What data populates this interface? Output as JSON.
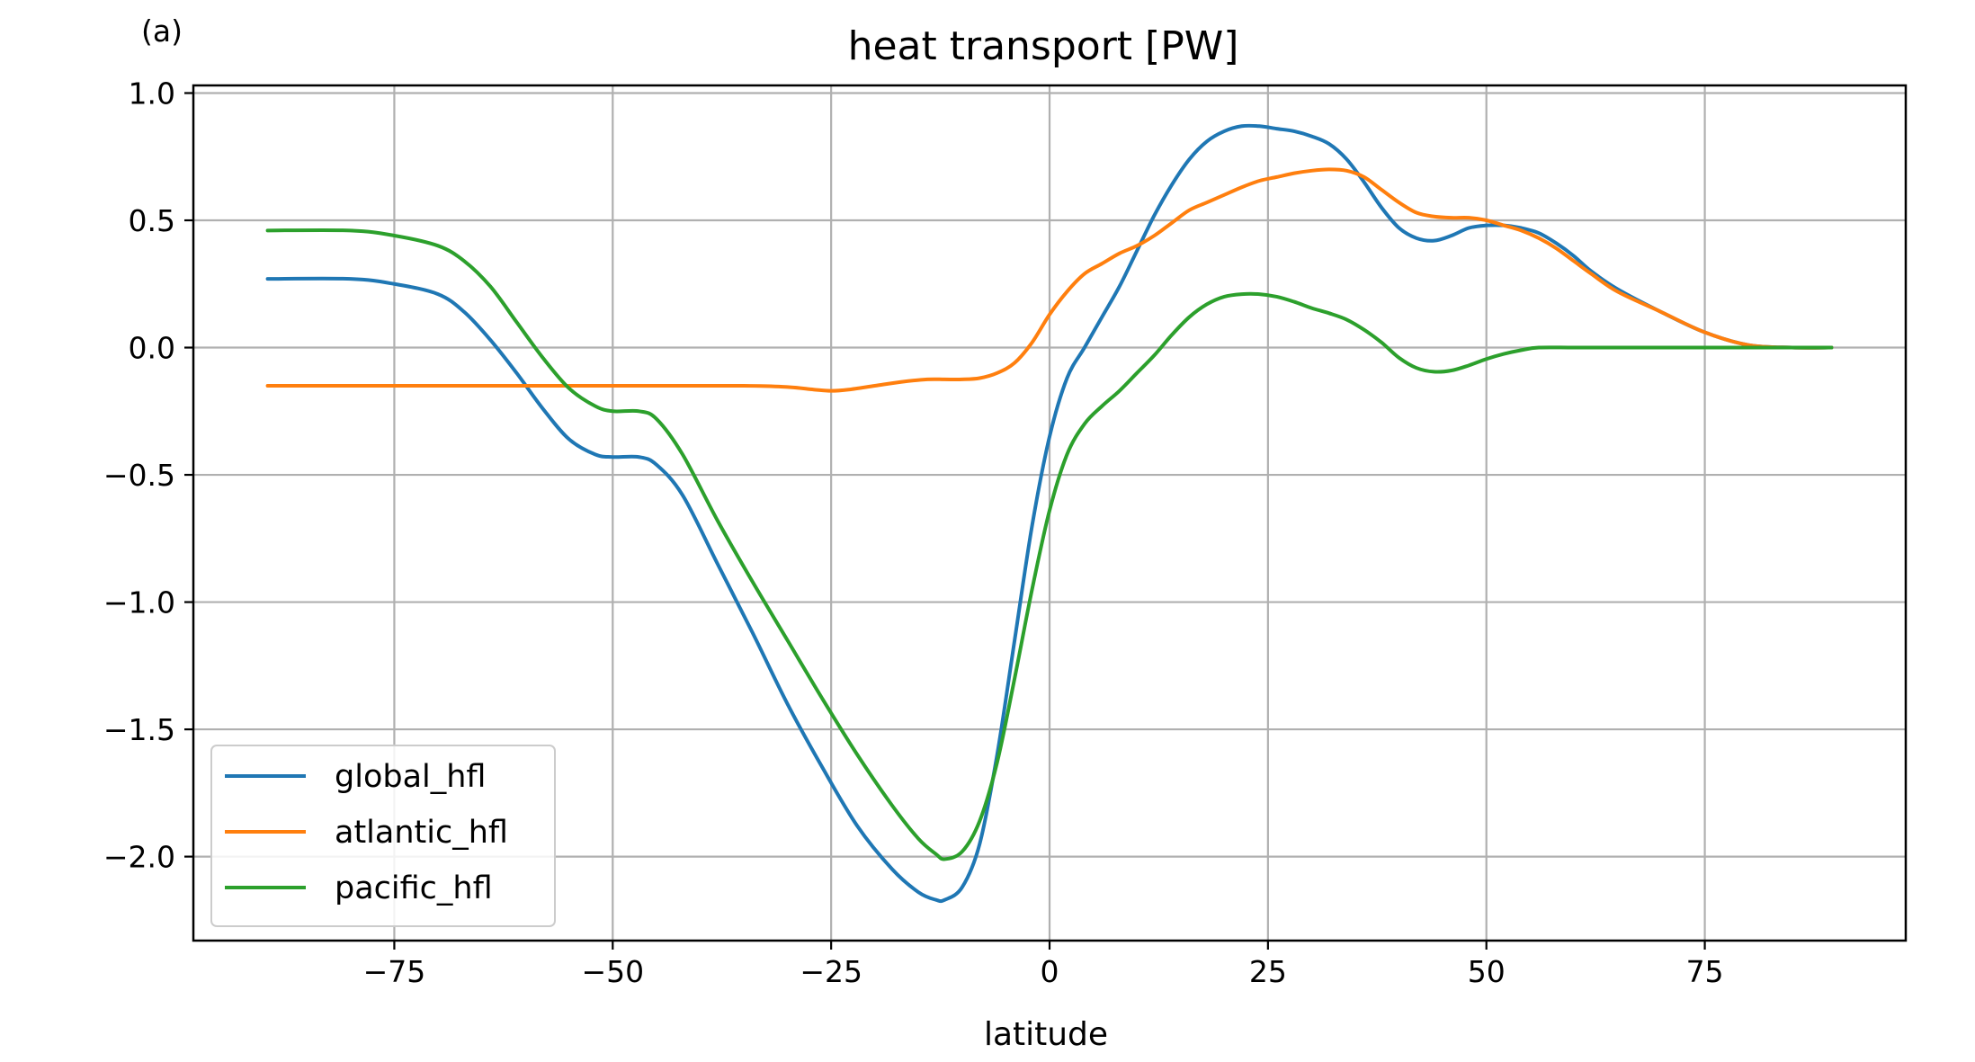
{
  "panel_label": "(a)",
  "chart_data": {
    "type": "line",
    "title": "heat transport [PW]",
    "xlabel": "latitude",
    "ylabel": "",
    "xlim": [
      -98,
      98
    ],
    "ylim": [
      -2.33,
      1.03
    ],
    "x_ticks": [
      -75,
      -50,
      -25,
      0,
      25,
      50,
      75
    ],
    "x_tick_labels": [
      "−75",
      "−50",
      "−25",
      "0",
      "25",
      "50",
      "75"
    ],
    "y_ticks": [
      1.0,
      0.5,
      0.0,
      -0.5,
      -1.0,
      -1.5,
      -2.0
    ],
    "y_tick_labels": [
      "1.0",
      "0.5",
      "0.0",
      "−0.5",
      "−1.0",
      "−1.5",
      "−2.0"
    ],
    "grid": true,
    "legend_position": "lower-left",
    "series": [
      {
        "name": "global_hfl",
        "color": "#1f77b4",
        "x": [
          -89.5,
          -80,
          -75,
          -70,
          -67,
          -64,
          -61,
          -58,
          -55,
          -52,
          -50,
          -47,
          -45,
          -42,
          -38,
          -34,
          -30,
          -26,
          -22,
          -18,
          -15,
          -13,
          -12,
          -10,
          -8,
          -6,
          -4,
          -2,
          0,
          2,
          4,
          6,
          8,
          10,
          12,
          14,
          16,
          18,
          20,
          22,
          24,
          26,
          28,
          30,
          32,
          34,
          36,
          38,
          40,
          42,
          44,
          46,
          48,
          50,
          52,
          54,
          56,
          58,
          60,
          62,
          65,
          70,
          75,
          80,
          85,
          89.5
        ],
        "y": [
          0.27,
          0.27,
          0.25,
          0.21,
          0.14,
          0.03,
          -0.1,
          -0.24,
          -0.36,
          -0.42,
          -0.43,
          -0.43,
          -0.46,
          -0.58,
          -0.85,
          -1.12,
          -1.4,
          -1.65,
          -1.88,
          -2.05,
          -2.14,
          -2.17,
          -2.17,
          -2.12,
          -1.95,
          -1.6,
          -1.15,
          -0.7,
          -0.35,
          -0.12,
          0.0,
          0.12,
          0.24,
          0.38,
          0.52,
          0.64,
          0.74,
          0.81,
          0.85,
          0.87,
          0.87,
          0.86,
          0.85,
          0.83,
          0.8,
          0.74,
          0.65,
          0.55,
          0.47,
          0.43,
          0.42,
          0.44,
          0.47,
          0.48,
          0.48,
          0.47,
          0.45,
          0.41,
          0.36,
          0.3,
          0.23,
          0.14,
          0.06,
          0.01,
          0.0,
          0.0
        ]
      },
      {
        "name": "atlantic_hfl",
        "color": "#ff7f0e",
        "x": [
          -89.5,
          -70,
          -50,
          -35,
          -30,
          -27,
          -25,
          -23,
          -20,
          -17,
          -14,
          -12,
          -10,
          -8,
          -6,
          -4,
          -2,
          0,
          2,
          4,
          6,
          8,
          10,
          12,
          14,
          16,
          18,
          20,
          22,
          24,
          26,
          28,
          30,
          32,
          34,
          36,
          38,
          40,
          42,
          44,
          46,
          48,
          50,
          52,
          54,
          56,
          58,
          60,
          62,
          65,
          70,
          75,
          80,
          85,
          89.5
        ],
        "y": [
          -0.15,
          -0.15,
          -0.15,
          -0.15,
          -0.155,
          -0.165,
          -0.17,
          -0.165,
          -0.15,
          -0.135,
          -0.125,
          -0.125,
          -0.125,
          -0.12,
          -0.1,
          -0.06,
          0.02,
          0.13,
          0.22,
          0.29,
          0.33,
          0.37,
          0.4,
          0.44,
          0.49,
          0.54,
          0.57,
          0.6,
          0.63,
          0.655,
          0.67,
          0.685,
          0.695,
          0.7,
          0.695,
          0.67,
          0.62,
          0.57,
          0.53,
          0.515,
          0.51,
          0.51,
          0.5,
          0.48,
          0.46,
          0.43,
          0.39,
          0.34,
          0.29,
          0.22,
          0.14,
          0.06,
          0.01,
          0.0,
          0.0
        ]
      },
      {
        "name": "pacific_hfl",
        "color": "#2ca02c",
        "x": [
          -89.5,
          -80,
          -75,
          -70,
          -67,
          -64,
          -61,
          -58,
          -55,
          -52,
          -50,
          -47,
          -45,
          -42,
          -38,
          -34,
          -30,
          -26,
          -22,
          -18,
          -15,
          -13,
          -12,
          -10,
          -8,
          -6,
          -4,
          -2,
          0,
          2,
          4,
          6,
          8,
          10,
          12,
          14,
          16,
          18,
          20,
          22,
          24,
          26,
          28,
          30,
          32,
          34,
          36,
          38,
          40,
          42,
          44,
          46,
          48,
          50,
          52,
          54,
          56,
          60,
          65,
          70,
          80,
          89.5
        ],
        "y": [
          0.46,
          0.46,
          0.44,
          0.4,
          0.34,
          0.24,
          0.1,
          -0.04,
          -0.16,
          -0.23,
          -0.25,
          -0.25,
          -0.28,
          -0.42,
          -0.68,
          -0.92,
          -1.15,
          -1.38,
          -1.6,
          -1.8,
          -1.93,
          -1.99,
          -2.01,
          -1.98,
          -1.86,
          -1.63,
          -1.3,
          -0.95,
          -0.64,
          -0.42,
          -0.3,
          -0.23,
          -0.17,
          -0.1,
          -0.03,
          0.05,
          0.12,
          0.17,
          0.2,
          0.21,
          0.21,
          0.2,
          0.18,
          0.155,
          0.135,
          0.11,
          0.07,
          0.02,
          -0.04,
          -0.08,
          -0.095,
          -0.09,
          -0.07,
          -0.045,
          -0.025,
          -0.01,
          0.0,
          0.0,
          0.0,
          0.0,
          0.0,
          0.0
        ]
      }
    ]
  }
}
